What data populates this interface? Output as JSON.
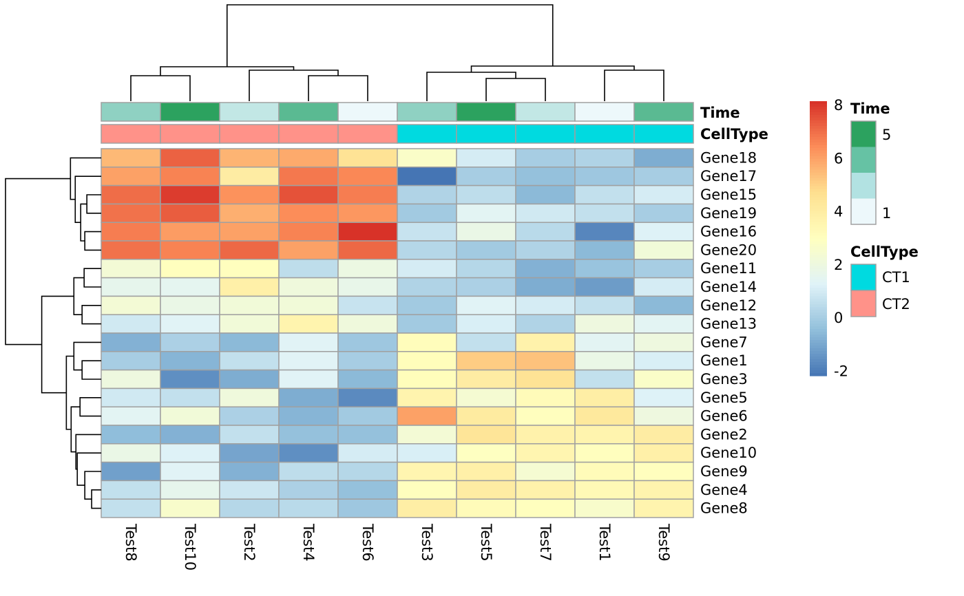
{
  "chart_data": {
    "type": "heatmap",
    "columns": [
      "Test8",
      "Test10",
      "Test2",
      "Test4",
      "Test6",
      "Test3",
      "Test5",
      "Test7",
      "Test1",
      "Test9"
    ],
    "rows": [
      "Gene18",
      "Gene17",
      "Gene15",
      "Gene19",
      "Gene16",
      "Gene20",
      "Gene11",
      "Gene14",
      "Gene12",
      "Gene13",
      "Gene7",
      "Gene1",
      "Gene3",
      "Gene5",
      "Gene6",
      "Gene2",
      "Gene10",
      "Gene9",
      "Gene4",
      "Gene8"
    ],
    "values": [
      [
        5.5,
        7.2,
        5.6,
        5.8,
        4.5,
        2.7,
        1.0,
        0.0,
        0.2,
        -0.9
      ],
      [
        6.0,
        6.6,
        4.0,
        6.8,
        6.5,
        -2.2,
        0.0,
        -0.4,
        -0.2,
        0.0
      ],
      [
        7.0,
        7.9,
        6.3,
        7.5,
        6.7,
        0.2,
        0.5,
        -0.6,
        0.6,
        1.0
      ],
      [
        6.9,
        7.3,
        5.7,
        6.4,
        6.2,
        -0.1,
        1.4,
        0.9,
        0.6,
        0.0
      ],
      [
        6.7,
        6.1,
        6.0,
        6.6,
        8.1,
        0.7,
        1.8,
        0.4,
        -1.8,
        1.2
      ],
      [
        6.9,
        6.6,
        7.1,
        6.0,
        7.1,
        0.3,
        -0.1,
        0.2,
        -0.6,
        2.2
      ],
      [
        2.3,
        3.0,
        3.0,
        0.5,
        1.9,
        1.0,
        0.3,
        -0.8,
        -0.3,
        0.0
      ],
      [
        1.6,
        1.5,
        3.8,
        2.1,
        1.7,
        0.2,
        0.1,
        -0.9,
        -1.3,
        1.0
      ],
      [
        2.3,
        1.8,
        2.2,
        2.2,
        0.7,
        -0.1,
        1.3,
        1.0,
        0.6,
        -0.6
      ],
      [
        0.9,
        1.3,
        2.2,
        3.6,
        2.1,
        -0.1,
        1.1,
        0.2,
        2.0,
        1.4
      ],
      [
        -0.8,
        0.1,
        -0.6,
        1.3,
        -0.2,
        3.1,
        0.6,
        3.7,
        1.4,
        2.0
      ],
      [
        0.0,
        -0.7,
        0.6,
        1.3,
        0.0,
        3.1,
        5.1,
        5.3,
        1.8,
        1.1
      ],
      [
        2.0,
        -1.6,
        -0.9,
        1.3,
        -0.6,
        3.1,
        4.0,
        4.5,
        0.6,
        2.7
      ],
      [
        0.9,
        0.6,
        2.1,
        -0.9,
        -1.7,
        3.6,
        2.4,
        3.2,
        3.9,
        1.2
      ],
      [
        1.4,
        2.2,
        0.1,
        -0.7,
        -0.1,
        6.0,
        4.1,
        3.0,
        4.2,
        2.0
      ],
      [
        -0.5,
        -0.8,
        0.6,
        -0.4,
        -0.4,
        2.3,
        4.4,
        3.7,
        3.6,
        4.0
      ],
      [
        1.8,
        1.2,
        -1.1,
        -1.6,
        1.0,
        1.1,
        2.9,
        3.5,
        3.0,
        3.8
      ],
      [
        -1.2,
        1.3,
        -0.8,
        0.5,
        0.3,
        3.5,
        3.8,
        2.4,
        3.2,
        3.0
      ],
      [
        0.6,
        1.6,
        0.8,
        0.1,
        -0.4,
        3.0,
        4.0,
        3.7,
        3.3,
        3.6
      ],
      [
        0.6,
        2.6,
        0.3,
        0.4,
        -0.2,
        3.9,
        3.2,
        3.0,
        2.6,
        3.6
      ]
    ],
    "color_range": [
      -2.2,
      8.13
    ],
    "color_stops": [
      "#4575B4",
      "#91BFDB",
      "#E0F3F8",
      "#FFFFBF",
      "#FEE090",
      "#FC8D59",
      "#D73027"
    ],
    "colorbar_ticks": [
      "8",
      "6",
      "4",
      "2",
      "0",
      "-2"
    ],
    "colorbar_tick_values": [
      8,
      6,
      4,
      2,
      0,
      -2
    ],
    "cell_border_color": "#A0A0A0",
    "annotations": {
      "Time": {
        "label": "Time",
        "values": [
          3,
          5,
          2,
          4,
          1,
          3,
          5,
          2,
          1,
          4
        ],
        "colors": {
          "1": "#EDF8FB",
          "2": "#C2E7E5",
          "3": "#8FD1C2",
          "4": "#5ABA92",
          "5": "#2CA25F"
        },
        "legend_colors": [
          "#2CA25F",
          "#66C2A4",
          "#B2E2E2",
          "#EDF8FB"
        ],
        "legend_labels": [
          "5",
          "1"
        ]
      },
      "CellType": {
        "label": "CellType",
        "values": [
          "CT2",
          "CT2",
          "CT2",
          "CT2",
          "CT2",
          "CT1",
          "CT1",
          "CT1",
          "CT1",
          "CT1"
        ],
        "colors": {
          "CT1": "#00DAE0",
          "CT2": "#FF9289"
        },
        "legend_labels": [
          "CT1",
          "CT2"
        ]
      }
    },
    "column_dendrogram": {
      "h": 14.0,
      "c": [
        {
          "h": 5.0,
          "c": [
            {
              "h": 3.7,
              "c": [
                0,
                1
              ]
            },
            {
              "h": 4.5,
              "c": [
                2,
                {
                  "h": 3.7,
                  "c": [
                    3,
                    4
                  ]
                }
              ]
            }
          ]
        },
        {
          "h": 5.1,
          "c": [
            {
              "h": 4.2,
              "c": [
                5,
                {
                  "h": 3.3,
                  "c": [
                    6,
                    7
                  ]
                }
              ]
            },
            {
              "h": 4.5,
              "c": [
                8,
                9
              ]
            }
          ]
        }
      ]
    },
    "row_dendrogram": {
      "h": 14.0,
      "c": [
        {
          "h": 4.5,
          "c": [
            0,
            {
              "h": 3.8,
              "c": [
                1,
                {
                  "h": 3.0,
                  "c": [
                    {
                      "h": 2.1,
                      "c": [
                        2,
                        3
                      ]
                    },
                    {
                      "h": 2.4,
                      "c": [
                        4,
                        5
                      ]
                    }
                  ]
                }
              ]
            }
          ]
        },
        {
          "h": 8.7,
          "c": [
            {
              "h": 4.0,
              "c": [
                {
                  "h": 2.5,
                  "c": [
                    6,
                    7
                  ]
                },
                {
                  "h": 2.8,
                  "c": [
                    8,
                    9
                  ]
                }
              ]
            },
            {
              "h": 5.1,
              "c": [
                {
                  "h": 4.0,
                  "c": [
                    10,
                    {
                      "h": 2.8,
                      "c": [
                        11,
                        12
                      ]
                    }
                  ]
                },
                {
                  "h": 4.4,
                  "c": [
                    {
                      "h": 3.1,
                      "c": [
                        13,
                        14
                      ]
                    },
                    {
                      "h": 3.7,
                      "c": [
                        15,
                        {
                          "h": 3.5,
                          "c": [
                            16,
                            {
                              "h": 2.4,
                              "c": [
                                17,
                                {
                                  "h": 1.4,
                                  "c": [
                                    18,
                                    19
                                  ]
                                }
                              ]
                            }
                          ]
                        }
                      ]
                    }
                  ]
                }
              ]
            }
          ]
        }
      ]
    }
  }
}
